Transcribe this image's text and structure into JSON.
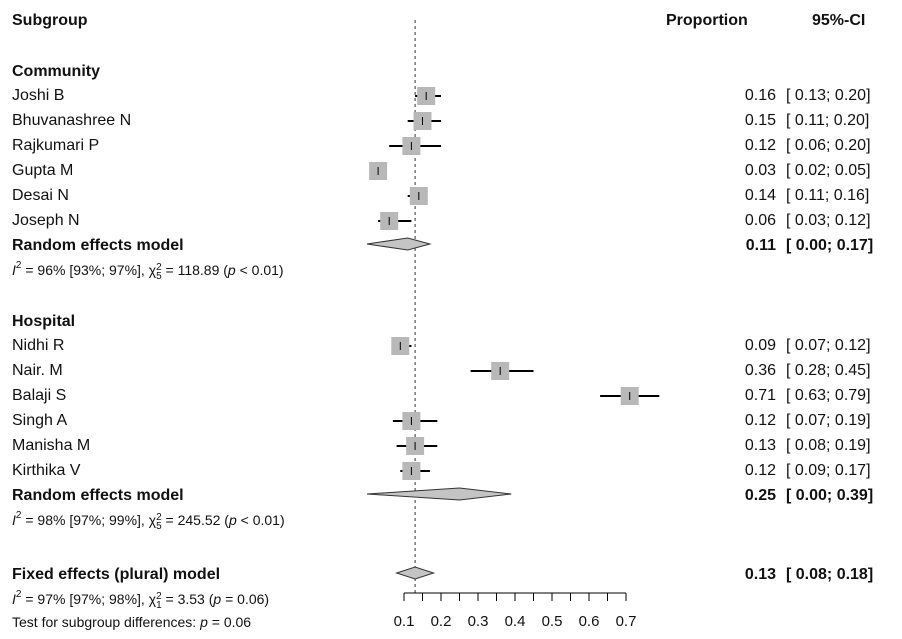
{
  "header": {
    "subgroup": "Subgroup",
    "proportion": "Proportion",
    "ci": "95%-CI"
  },
  "groups": [
    {
      "name": "Community",
      "studies": [
        {
          "label": "Joshi B",
          "est": 0.16,
          "lo": 0.13,
          "hi": 0.2,
          "prop": "0.16",
          "ci": "[ 0.13; 0.20]"
        },
        {
          "label": " Bhuvanashree N",
          "est": 0.15,
          "lo": 0.11,
          "hi": 0.2,
          "prop": "0.15",
          "ci": "[ 0.11; 0.20]"
        },
        {
          "label": "Rajkumari P",
          "est": 0.12,
          "lo": 0.06,
          "hi": 0.2,
          "prop": "0.12",
          "ci": "[ 0.06; 0.20]"
        },
        {
          "label": "Gupta M",
          "est": 0.03,
          "lo": 0.02,
          "hi": 0.05,
          "prop": "0.03",
          "ci": "[ 0.02; 0.05]"
        },
        {
          "label": "Desai N",
          "est": 0.14,
          "lo": 0.11,
          "hi": 0.16,
          "prop": "0.14",
          "ci": "[ 0.11; 0.16]"
        },
        {
          "label": "Joseph N",
          "est": 0.06,
          "lo": 0.03,
          "hi": 0.12,
          "prop": "0.06",
          "ci": "[ 0.03; 0.12]"
        }
      ],
      "pooled": {
        "label": "Random effects model",
        "est": 0.11,
        "lo": 0.0,
        "hi": 0.17,
        "prop": "0.11",
        "ci": "[ 0.00; 0.17]"
      },
      "het": {
        "i2": " = 96% [93%; 97%], ",
        "chi": " = 118.89 (",
        "p": " < 0.01)",
        "df": "5"
      }
    },
    {
      "name": "Hospital",
      "studies": [
        {
          "label": "Nidhi R",
          "est": 0.09,
          "lo": 0.07,
          "hi": 0.12,
          "prop": "0.09",
          "ci": "[ 0.07; 0.12]"
        },
        {
          "label": " Nair. M",
          "est": 0.36,
          "lo": 0.28,
          "hi": 0.45,
          "prop": "0.36",
          "ci": "[ 0.28; 0.45]"
        },
        {
          "label": "Balaji S",
          "est": 0.71,
          "lo": 0.63,
          "hi": 0.79,
          "prop": "0.71",
          "ci": "[ 0.63; 0.79]"
        },
        {
          "label": "Singh A",
          "est": 0.12,
          "lo": 0.07,
          "hi": 0.19,
          "prop": "0.12",
          "ci": "[ 0.07; 0.19]"
        },
        {
          "label": "Manisha M",
          "est": 0.13,
          "lo": 0.08,
          "hi": 0.19,
          "prop": "0.13",
          "ci": "[ 0.08; 0.19]"
        },
        {
          "label": " Kirthika V",
          "est": 0.12,
          "lo": 0.09,
          "hi": 0.17,
          "prop": "0.12",
          "ci": "[ 0.09; 0.17]"
        }
      ],
      "pooled": {
        "label": "Random effects model",
        "est": 0.25,
        "lo": 0.0,
        "hi": 0.39,
        "prop": "0.25",
        "ci": "[ 0.00; 0.39]"
      },
      "het": {
        "i2": " = 98% [97%; 99%], ",
        "chi": " = 245.52 (",
        "p": " < 0.01)",
        "df": "5"
      }
    }
  ],
  "overall": {
    "label": "Fixed effects (plural) model",
    "est": 0.13,
    "lo": 0.08,
    "hi": 0.18,
    "prop": "0.13",
    "ci": "[ 0.08; 0.18]",
    "het": {
      "i2": " = 97% [97%; 98%], ",
      "chi": " = 3.53 (",
      "p": " = 0.06)",
      "df": "1"
    }
  },
  "subgroup_test": {
    "prefix": "Test for subgroup differences:  ",
    "p": " = 0.06"
  },
  "het_symbols": {
    "I": "I",
    "two": "2",
    "chi": "χ",
    "p": "p"
  },
  "chart_data": {
    "type": "forest",
    "xlim": [
      0,
      0.7
    ],
    "ref_line": 0.13,
    "ticks": [
      0.1,
      0.2,
      0.3,
      0.4,
      0.5,
      0.6,
      0.7
    ],
    "tick_labels": [
      "0.1",
      "0.2",
      "0.3",
      "0.4",
      "0.5",
      "0.6",
      "0.7"
    ],
    "columns": [
      "Proportion",
      "95%-CI"
    ]
  },
  "colors": {
    "box": "#b8b8b8",
    "diamond": "#c4c4c4",
    "line": "#000000"
  }
}
